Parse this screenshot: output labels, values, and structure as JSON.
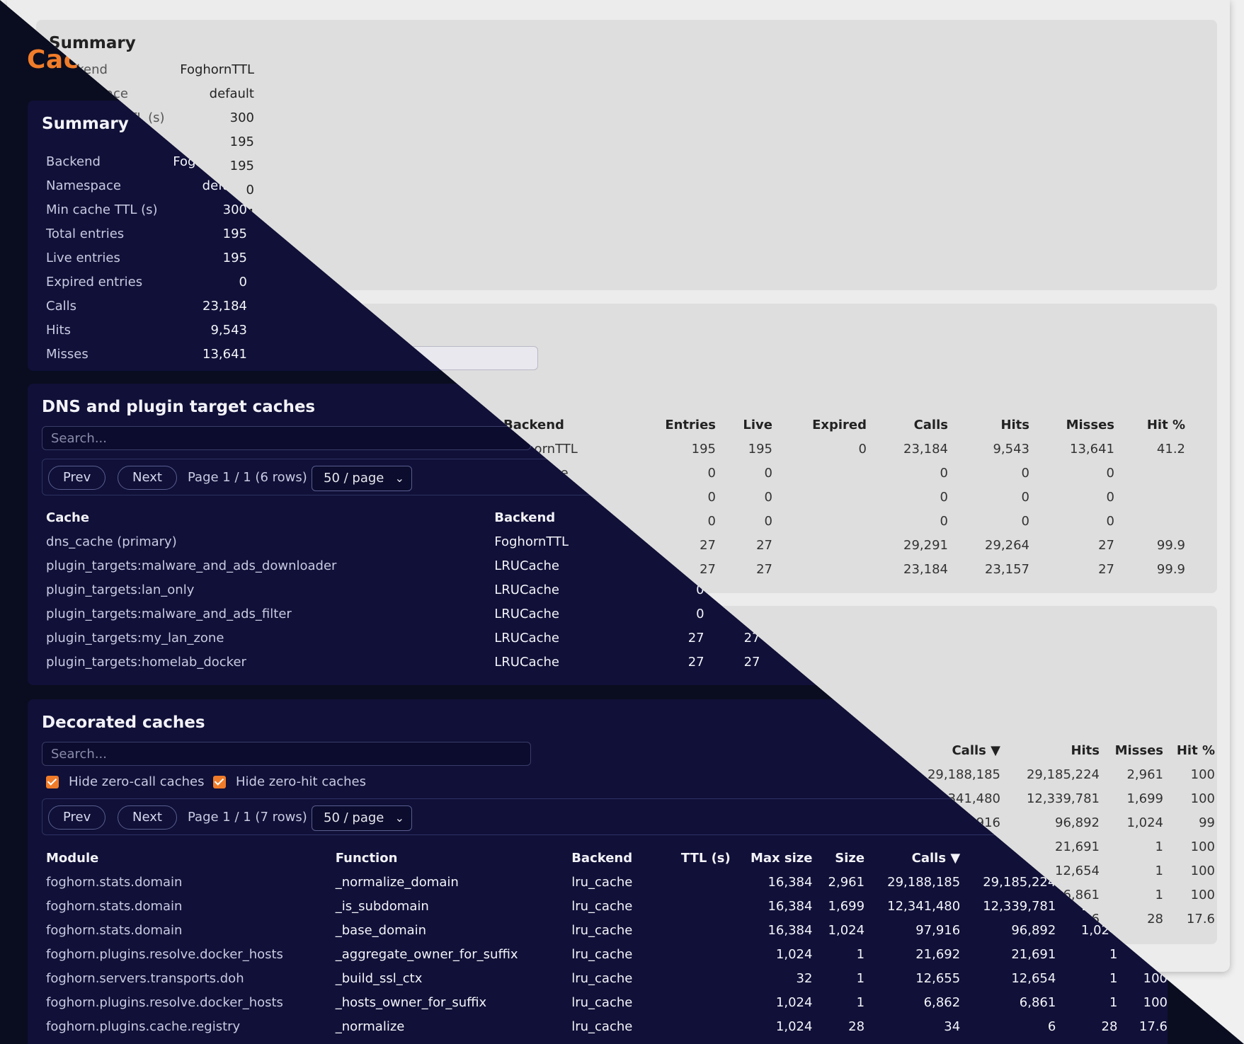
{
  "page_title": "Caches",
  "summary": {
    "title": "Summary",
    "rows": [
      {
        "label": "Backend",
        "value": "FoghornTTL"
      },
      {
        "label": "Namespace",
        "value": "default"
      },
      {
        "label": "Min cache TTL (s)",
        "value": "300"
      },
      {
        "label": "Total entries",
        "value": "195"
      },
      {
        "label": "Live entries",
        "value": "195"
      },
      {
        "label": "Expired entries",
        "value": "0"
      },
      {
        "label": "Calls",
        "value": "23,184"
      },
      {
        "label": "Hits",
        "value": "9,543"
      },
      {
        "label": "Misses",
        "value": "13,641"
      }
    ]
  },
  "dns": {
    "title": "DNS and plugin target caches",
    "search_placeholder": "Search...",
    "prev_label": "Prev",
    "next_label": "Next",
    "page_info": "Page 1 / 1 (6 rows)",
    "page_size": "50 / page",
    "columns": [
      "Cache",
      "Backend",
      "Entries",
      "Live",
      "Expired",
      "Calls",
      "Hits",
      "Misses",
      "Hit %"
    ],
    "rows": [
      [
        "dns_cache (primary)",
        "FoghornTTL",
        "195",
        "195",
        "0",
        "23,184",
        "9,543",
        "13,641",
        "41.2"
      ],
      [
        "plugin_targets:malware_and_ads_downloader",
        "LRUCache",
        "0",
        "0",
        "",
        "0",
        "0",
        "0",
        ""
      ],
      [
        "plugin_targets:lan_only",
        "LRUCache",
        "0",
        "0",
        "",
        "0",
        "0",
        "0",
        ""
      ],
      [
        "plugin_targets:malware_and_ads_filter",
        "LRUCache",
        "0",
        "0",
        "",
        "0",
        "0",
        "0",
        ""
      ],
      [
        "plugin_targets:my_lan_zone",
        "LRUCache",
        "27",
        "27",
        "",
        "29,291",
        "29,264",
        "27",
        "99.9"
      ],
      [
        "plugin_targets:homelab_docker",
        "LRUCache",
        "27",
        "27",
        "",
        "23,184",
        "23,157",
        "27",
        "99.9"
      ]
    ]
  },
  "decorated": {
    "title": "Decorated caches",
    "search_placeholder": "Search...",
    "hide_zero_calls_label": "Hide zero-call caches",
    "hide_zero_hits_label": "Hide zero-hit caches",
    "prev_label": "Prev",
    "next_label": "Next",
    "page_info": "Page 1 / 1 (7 rows)",
    "page_size": "50 / page",
    "columns": [
      "Module",
      "Function",
      "Backend",
      "TTL (s)",
      "Max size",
      "Size",
      "Calls ▼",
      "Hits",
      "Misses",
      "Hit %"
    ],
    "rows": [
      [
        "foghorn.stats.domain",
        "_normalize_domain",
        "lru_cache",
        "",
        "16,384",
        "2,961",
        "29,188,185",
        "29,185,224",
        "2,961",
        "100"
      ],
      [
        "foghorn.stats.domain",
        "_is_subdomain",
        "lru_cache",
        "",
        "16,384",
        "1,699",
        "12,341,480",
        "12,339,781",
        "1,699",
        "100"
      ],
      [
        "foghorn.stats.domain",
        "_base_domain",
        "lru_cache",
        "",
        "16,384",
        "1,024",
        "97,916",
        "96,892",
        "1,024",
        "99"
      ],
      [
        "foghorn.plugins.resolve.docker_hosts",
        "_aggregate_owner_for_suffix",
        "lru_cache",
        "",
        "1,024",
        "1",
        "21,692",
        "21,691",
        "1",
        "100"
      ],
      [
        "foghorn.servers.transports.doh",
        "_build_ssl_ctx",
        "lru_cache",
        "",
        "32",
        "1",
        "12,655",
        "12,654",
        "1",
        "100"
      ],
      [
        "foghorn.plugins.resolve.docker_hosts",
        "_hosts_owner_for_suffix",
        "lru_cache",
        "",
        "1,024",
        "1",
        "6,862",
        "6,861",
        "1",
        "100"
      ],
      [
        "foghorn.plugins.cache.registry",
        "_normalize",
        "lru_cache",
        "",
        "1,024",
        "28",
        "34",
        "6",
        "28",
        "17.6"
      ]
    ]
  }
}
